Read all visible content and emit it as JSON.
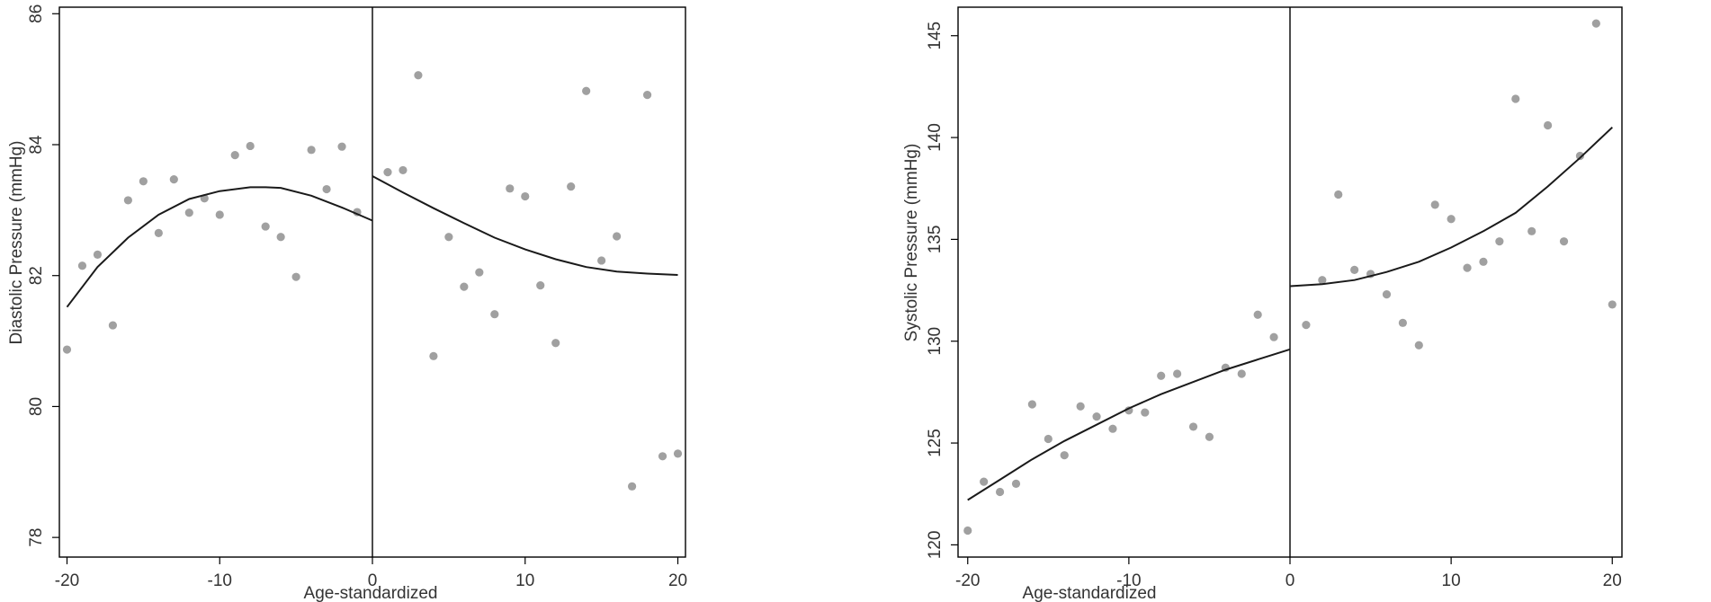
{
  "chart_data": [
    {
      "type": "scatter",
      "title": "",
      "xlabel": "Age-standardized",
      "ylabel": "Diastolic Pressure (mmHg)",
      "xlim": [
        -20.5,
        20.5
      ],
      "ylim": [
        77.7,
        86.1
      ],
      "xticks": [
        -20,
        -10,
        0,
        10,
        20
      ],
      "xtick_labels": [
        "-20",
        "-10",
        "0",
        "10",
        "20"
      ],
      "yticks": [
        78,
        80,
        82,
        84,
        86
      ],
      "ytick_labels": [
        "78",
        "80",
        "82",
        "84",
        "86"
      ],
      "cutoff_x": 0,
      "grid": false,
      "colors": {
        "points": "#a0a0a0",
        "fit": "#1a1a1a",
        "axis": "#000000"
      },
      "points": [
        [
          -20,
          80.87
        ],
        [
          -19,
          82.15
        ],
        [
          -18,
          82.32
        ],
        [
          -17,
          81.24
        ],
        [
          -16,
          83.15
        ],
        [
          -15,
          83.44
        ],
        [
          -14,
          82.65
        ],
        [
          -13,
          83.47
        ],
        [
          -12,
          82.96
        ],
        [
          -11,
          83.18
        ],
        [
          -10,
          82.93
        ],
        [
          -9,
          83.84
        ],
        [
          -8,
          83.98
        ],
        [
          -7,
          82.75
        ],
        [
          -6,
          82.59
        ],
        [
          -5,
          81.98
        ],
        [
          -4,
          83.92
        ],
        [
          -3,
          83.32
        ],
        [
          -2,
          83.97
        ],
        [
          -1,
          82.97
        ],
        [
          1,
          83.58
        ],
        [
          2,
          83.61
        ],
        [
          3,
          85.06
        ],
        [
          4,
          80.77
        ],
        [
          5,
          82.59
        ],
        [
          6,
          81.83
        ],
        [
          7,
          82.05
        ],
        [
          8,
          81.41
        ],
        [
          9,
          83.33
        ],
        [
          10,
          83.21
        ],
        [
          11,
          81.85
        ],
        [
          12,
          80.97
        ],
        [
          13,
          83.36
        ],
        [
          14,
          84.82
        ],
        [
          15,
          82.23
        ],
        [
          16,
          82.6
        ],
        [
          17,
          78.78
        ],
        [
          18,
          84.76
        ],
        [
          19,
          79.24
        ],
        [
          20,
          79.28
        ]
      ],
      "fit_left": [
        [
          -20,
          81.52
        ],
        [
          -18,
          82.13
        ],
        [
          -16,
          82.58
        ],
        [
          -14,
          82.93
        ],
        [
          -12,
          83.17
        ],
        [
          -10,
          83.29
        ],
        [
          -8,
          83.35
        ],
        [
          -7,
          83.35
        ],
        [
          -6,
          83.34
        ],
        [
          -4,
          83.22
        ],
        [
          -2,
          83.04
        ],
        [
          0,
          82.84
        ]
      ],
      "fit_right": [
        [
          0,
          83.52
        ],
        [
          2,
          83.27
        ],
        [
          4,
          83.03
        ],
        [
          6,
          82.8
        ],
        [
          8,
          82.58
        ],
        [
          10,
          82.4
        ],
        [
          12,
          82.25
        ],
        [
          14,
          82.13
        ],
        [
          16,
          82.06
        ],
        [
          18,
          82.03
        ],
        [
          20,
          82.01
        ]
      ]
    },
    {
      "type": "scatter",
      "title": "",
      "xlabel": "Age-standardized",
      "ylabel": "Systolic Pressure (mmHg)",
      "xlim": [
        -20.6,
        20.6
      ],
      "ylim": [
        119.4,
        146.4
      ],
      "xticks": [
        -20,
        -10,
        0,
        10,
        20
      ],
      "xtick_labels": [
        "-20",
        "-10",
        "0",
        "10",
        "20"
      ],
      "yticks": [
        120,
        125,
        130,
        135,
        140,
        145
      ],
      "ytick_labels": [
        "120",
        "125",
        "130",
        "135",
        "140",
        "145"
      ],
      "cutoff_x": 0,
      "grid": false,
      "colors": {
        "points": "#a0a0a0",
        "fit": "#1a1a1a",
        "axis": "#000000"
      },
      "points": [
        [
          -20,
          120.7
        ],
        [
          -19,
          123.1
        ],
        [
          -18,
          122.6
        ],
        [
          -17,
          123.0
        ],
        [
          -16,
          126.9
        ],
        [
          -15,
          125.2
        ],
        [
          -14,
          124.4
        ],
        [
          -13,
          126.8
        ],
        [
          -12,
          126.3
        ],
        [
          -11,
          125.7
        ],
        [
          -10,
          126.6
        ],
        [
          -9,
          126.5
        ],
        [
          -8,
          128.3
        ],
        [
          -7,
          128.4
        ],
        [
          -6,
          125.8
        ],
        [
          -5,
          125.3
        ],
        [
          -4,
          128.7
        ],
        [
          -3,
          128.4
        ],
        [
          -2,
          131.3
        ],
        [
          -1,
          130.2
        ],
        [
          1,
          130.8
        ],
        [
          2,
          133.0
        ],
        [
          3,
          137.2
        ],
        [
          4,
          133.5
        ],
        [
          5,
          133.3
        ],
        [
          6,
          132.3
        ],
        [
          7,
          130.9
        ],
        [
          8,
          129.8
        ],
        [
          9,
          136.7
        ],
        [
          10,
          136.0
        ],
        [
          11,
          133.6
        ],
        [
          12,
          133.9
        ],
        [
          13,
          134.9
        ],
        [
          14,
          141.9
        ],
        [
          15,
          135.4
        ],
        [
          16,
          140.6
        ],
        [
          17,
          134.9
        ],
        [
          18,
          139.1
        ],
        [
          19,
          145.6
        ],
        [
          20,
          131.8
        ]
      ],
      "fit_left": [
        [
          -20,
          122.2
        ],
        [
          -18,
          123.2
        ],
        [
          -16,
          124.2
        ],
        [
          -14,
          125.1
        ],
        [
          -12,
          125.9
        ],
        [
          -10,
          126.7
        ],
        [
          -8,
          127.4
        ],
        [
          -6,
          128.0
        ],
        [
          -4,
          128.6
        ],
        [
          -2,
          129.1
        ],
        [
          0,
          129.6
        ]
      ],
      "fit_right": [
        [
          0,
          132.7
        ],
        [
          2,
          132.8
        ],
        [
          4,
          133.0
        ],
        [
          6,
          133.4
        ],
        [
          8,
          133.9
        ],
        [
          10,
          134.6
        ],
        [
          12,
          135.4
        ],
        [
          14,
          136.3
        ],
        [
          16,
          137.6
        ],
        [
          18,
          139.0
        ],
        [
          20,
          140.5
        ]
      ]
    }
  ]
}
